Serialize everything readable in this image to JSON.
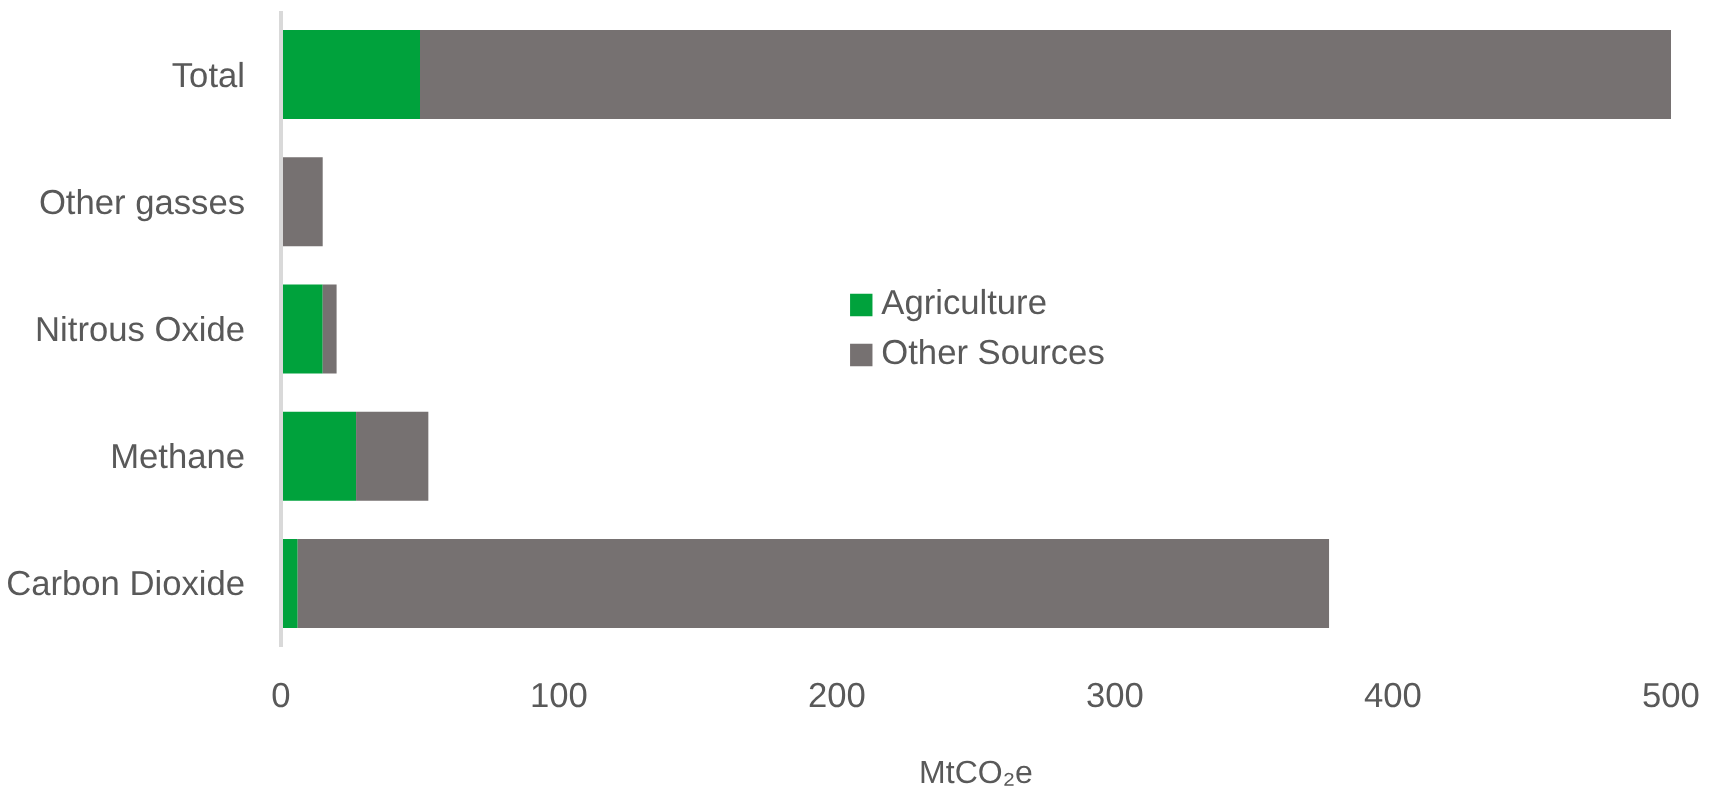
{
  "chart_data": {
    "type": "bar",
    "orientation": "horizontal",
    "stacked": true,
    "xlabel": "MtCO₂e",
    "categories": [
      "Total",
      "Other gasses",
      "Nitrous Oxide",
      "Methane",
      "Carbon Dioxide"
    ],
    "series": [
      {
        "name": "Agriculture",
        "color": "#00a23c",
        "values": [
          50,
          0,
          15,
          27,
          6
        ]
      },
      {
        "name": "Other Sources",
        "color": "#767171",
        "values": [
          450,
          15,
          5,
          26,
          371
        ]
      }
    ],
    "xlim": [
      0,
      500
    ],
    "xticks": [
      0,
      100,
      200,
      300,
      400,
      500
    ],
    "grid": false,
    "legend": "center"
  }
}
